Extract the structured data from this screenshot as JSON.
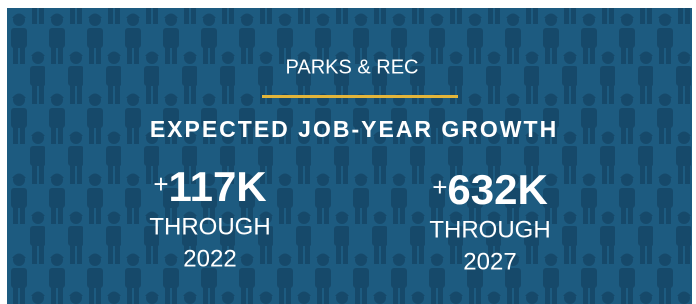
{
  "header": {
    "label": "PARKS & REC",
    "title": "EXPECTED JOB-YEAR GROWTH"
  },
  "stats": [
    {
      "sign": "+",
      "value": "117K",
      "period": "THROUGH",
      "year": "2022"
    },
    {
      "sign": "+",
      "value": "632K",
      "period": "THROUGH",
      "year": "2027"
    }
  ]
}
